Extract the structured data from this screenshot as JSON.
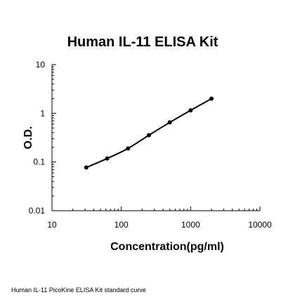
{
  "chart_data": {
    "type": "line",
    "title": "Human IL-11 ELISA Kit",
    "xlabel": "Concentration(pg/ml)",
    "ylabel": "O.D.",
    "x_scale": "log",
    "y_scale": "log",
    "xlim": [
      10,
      10000
    ],
    "ylim": [
      0.01,
      10
    ],
    "x_ticks": [
      "10",
      "100",
      "1000",
      "10000"
    ],
    "y_ticks": [
      "0.01",
      "0.1",
      "1",
      "10"
    ],
    "grid": false,
    "legend": "none",
    "series": [
      {
        "x": [
          31.25,
          62.5,
          125,
          250,
          500,
          1000,
          2000
        ],
        "y": [
          0.077,
          0.118,
          0.19,
          0.355,
          0.65,
          1.15,
          2.0
        ]
      }
    ]
  },
  "caption": "Human IL-11 PicoKine ELISA Kit standard curve",
  "colors": {
    "line": "#000000",
    "marker": "#000000",
    "axis": "#000000"
  }
}
